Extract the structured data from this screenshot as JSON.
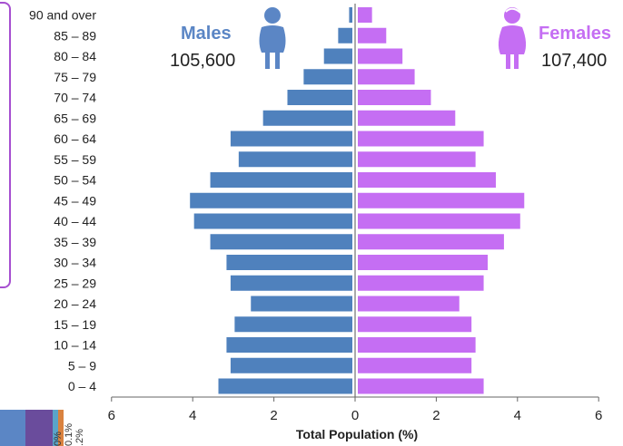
{
  "chart_data": {
    "type": "bar",
    "orientation": "horizontal-mirrored",
    "categories": [
      "0 – 4",
      "5 – 9",
      "10 – 14",
      "15 – 19",
      "20 – 24",
      "25 – 29",
      "30 – 34",
      "35 – 39",
      "40 – 44",
      "45 – 49",
      "50 – 54",
      "55 – 59",
      "60 – 64",
      "65 – 69",
      "70 – 74",
      "75 – 79",
      "80 – 84",
      "85 – 89",
      "90 and over"
    ],
    "series": [
      {
        "name": "Males",
        "color": "#4f81bd",
        "values": [
          3.3,
          3.0,
          3.1,
          2.9,
          2.5,
          3.0,
          3.1,
          3.5,
          3.9,
          4.0,
          3.5,
          2.8,
          3.0,
          2.2,
          1.6,
          1.2,
          0.7,
          0.35,
          0.08
        ]
      },
      {
        "name": "Females",
        "color": "#c56ef3",
        "values": [
          3.1,
          2.8,
          2.9,
          2.8,
          2.5,
          3.1,
          3.2,
          3.6,
          4.0,
          4.1,
          3.4,
          2.9,
          3.1,
          2.4,
          1.8,
          1.4,
          1.1,
          0.7,
          0.35
        ]
      }
    ],
    "x_ticks": [
      "6",
      "4",
      "2",
      "0",
      "2",
      "4",
      "6"
    ],
    "xlim": [
      -6,
      6
    ],
    "xlabel": "Total Population (%)",
    "grid": false
  },
  "labels": {
    "males": "Males",
    "males_total": "105,600",
    "females": "Females",
    "females_total": "107,400"
  },
  "legend_strip": {
    "segments": [
      {
        "color": "#5b86c5"
      },
      {
        "color": "#6a4c9c"
      },
      {
        "color": "#5aa4c9"
      },
      {
        "color": "#d9823f"
      }
    ],
    "texts": [
      "0%",
      "0.1%",
      ".2%"
    ]
  }
}
